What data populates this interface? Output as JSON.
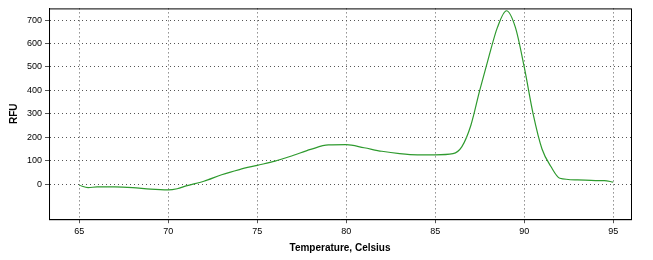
{
  "chart_data": {
    "type": "line",
    "x_label": "Temperature, Celsius",
    "y_label": "RFU",
    "x": [
      65,
      65.5,
      66,
      67,
      68,
      69,
      70,
      70.5,
      71,
      72,
      73,
      74,
      75,
      76,
      77,
      78,
      79,
      80,
      81,
      82,
      83,
      84,
      85,
      86,
      86.5,
      87,
      87.5,
      88,
      88.5,
      89,
      89.5,
      90,
      90.5,
      91,
      91.5,
      92,
      93,
      94,
      94.5,
      95
    ],
    "values": [
      -5,
      -15,
      -12,
      -12,
      -15,
      -22,
      -25,
      -20,
      -8,
      12,
      40,
      62,
      80,
      98,
      122,
      148,
      167,
      168,
      155,
      140,
      130,
      125,
      125,
      130,
      160,
      250,
      400,
      540,
      670,
      740,
      670,
      500,
      300,
      150,
      75,
      25,
      18,
      15,
      15,
      8
    ],
    "color": "#2e9a2e",
    "xlim": [
      63.3,
      96
    ],
    "ylim": [
      -150,
      750
    ],
    "xticks": [
      65,
      70,
      75,
      80,
      85,
      90,
      95
    ],
    "yticks": [
      0,
      100,
      200,
      300,
      400,
      500,
      600,
      700
    ],
    "grid": true
  }
}
